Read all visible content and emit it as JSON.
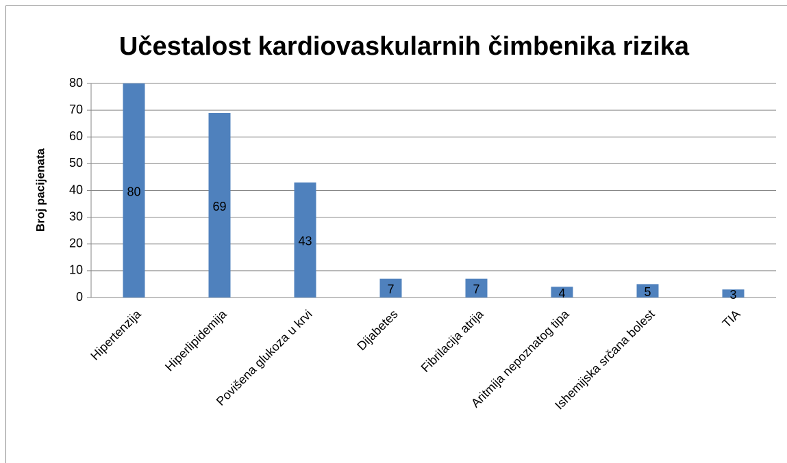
{
  "chart_data": {
    "type": "bar",
    "title": "Učestalost kardiovaskularnih čimbenika rizika",
    "y_label": "Broj pacijenata",
    "categories": [
      "Hipertenzija",
      "Hiperlipidemija",
      "Povišena glukoza u krvi",
      "Dijabetes",
      "Fibrilacija atrija",
      "Aritmija nepoznatog tipa",
      "Ishemijska srčana bolest",
      "TIA"
    ],
    "values": [
      80,
      69,
      43,
      7,
      7,
      4,
      5,
      3
    ],
    "color": "#4f81bd",
    "ylim": [
      0,
      80
    ],
    "yticks": [
      0,
      10,
      20,
      30,
      40,
      50,
      60,
      70,
      80
    ],
    "grid": true
  }
}
